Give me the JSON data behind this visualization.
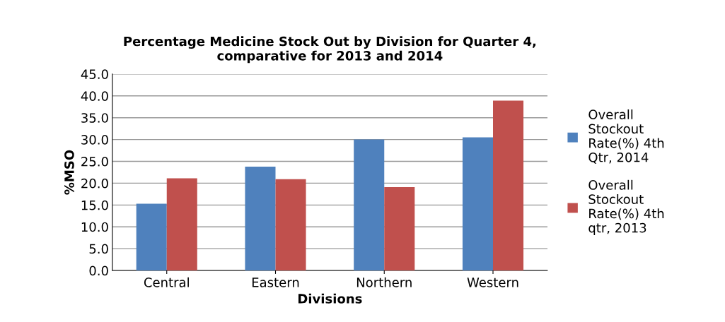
{
  "chart_data": {
    "type": "bar",
    "title": "Percentage Medicine Stock Out by Division for Quarter 4,\ncomparative for 2013 and 2014",
    "xlabel": "Divisions",
    "ylabel": "%MSO",
    "categories": [
      "Central",
      "Eastern",
      "Northern",
      "Western"
    ],
    "series": [
      {
        "name": "Overall\nStockout\nRate(%) 4th\nQtr, 2014",
        "color": "#4f81bd",
        "values": [
          15.3,
          23.8,
          30.0,
          30.5
        ]
      },
      {
        "name": "Overall\nStockout\nRate(%) 4th\nqtr, 2013",
        "color": "#c0504d",
        "values": [
          21.1,
          20.9,
          19.1,
          38.9
        ]
      }
    ],
    "ylim": [
      0,
      45
    ],
    "yticks": [
      {
        "value": 0,
        "label": "0.0"
      },
      {
        "value": 5,
        "label": "5.0"
      },
      {
        "value": 10,
        "label": "10.0"
      },
      {
        "value": 15,
        "label": "15.0"
      },
      {
        "value": 20,
        "label": "20.0"
      },
      {
        "value": 25,
        "label": "25.0"
      },
      {
        "value": 30,
        "label": "30.0"
      },
      {
        "value": 35,
        "label": "35.0"
      },
      {
        "value": 40,
        "label": "40.0"
      },
      {
        "value": 45,
        "label": "45.0"
      }
    ],
    "grid": "y",
    "legend": "right"
  }
}
